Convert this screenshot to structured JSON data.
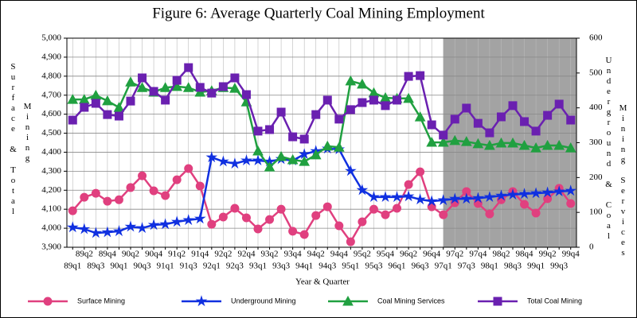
{
  "chart_data": {
    "type": "line",
    "title": "Figure 6:  Average Quarterly Coal Mining Employment",
    "xlabel": "Year & Quarter",
    "ylabel": [
      "Surface & Total",
      "Mining"
    ],
    "y2label": [
      "Underground & Coal",
      "Mining Services"
    ],
    "categories": [
      "89q1",
      "89q2",
      "89q3",
      "89q4",
      "90q1",
      "90q2",
      "90q3",
      "90q4",
      "91q1",
      "91q2",
      "91q3",
      "91q4",
      "92q1",
      "92q2",
      "92q3",
      "92q4",
      "93q1",
      "93q2",
      "93q3",
      "93q4",
      "94q1",
      "94q2",
      "94q3",
      "94q4",
      "95q1",
      "95q2",
      "95q3",
      "95q4",
      "96q1",
      "96q2",
      "96q3",
      "96q4",
      "97q1",
      "97q2",
      "97q3",
      "97q4",
      "98q1",
      "98q2",
      "98q3",
      "98q4",
      "99q1",
      "99q2",
      "99q3",
      "99q4"
    ],
    "shaded_from": "97q1",
    "shade_color": "#a3a3a3",
    "grid": true,
    "ylim": [
      3900,
      5000
    ],
    "yticks": [
      {
        "value": 3900,
        "label": "3,900"
      },
      {
        "value": 4000,
        "label": "4,000"
      },
      {
        "value": 4100,
        "label": "4,100"
      },
      {
        "value": 4200,
        "label": "4,200"
      },
      {
        "value": 4300,
        "label": "4,300"
      },
      {
        "value": 4400,
        "label": "4,400"
      },
      {
        "value": 4500,
        "label": "4,500"
      },
      {
        "value": 4600,
        "label": "4,600"
      },
      {
        "value": 4700,
        "label": "4,700"
      },
      {
        "value": 4800,
        "label": "4,800"
      },
      {
        "value": 4900,
        "label": "4,900"
      },
      {
        "value": 5000,
        "label": "5,000"
      }
    ],
    "y2lim": [
      0,
      600
    ],
    "y2ticks": [
      0,
      100,
      200,
      300,
      400,
      500,
      600
    ],
    "series": [
      {
        "name": "Surface Mining",
        "color": "#e0407f",
        "marker": "circle",
        "values": [
          4092,
          4163,
          4184,
          4142,
          4150,
          4214,
          4276,
          4197,
          4172,
          4255,
          4314,
          4222,
          4021,
          4059,
          4105,
          4055,
          3996,
          4046,
          4100,
          3984,
          3967,
          4067,
          4113,
          4013,
          3929,
          4034,
          4100,
          4071,
          4105,
          4230,
          4297,
          4113,
          4071,
          4134,
          4193,
          4130,
          4075,
          4150,
          4193,
          4126,
          4080,
          4155,
          4210,
          4130
        ]
      },
      {
        "name": "Underground Mining",
        "color": "#1030e0",
        "marker": "star",
        "axis": "y2",
        "values": [
          57,
          52,
          41,
          43,
          46,
          59,
          55,
          64,
          66,
          73,
          78,
          82,
          258,
          246,
          240,
          249,
          249,
          246,
          253,
          249,
          267,
          276,
          283,
          281,
          219,
          164,
          144,
          144,
          144,
          146,
          137,
          132,
          135,
          139,
          139,
          141,
          144,
          148,
          151,
          153,
          155,
          157,
          160,
          162
        ]
      },
      {
        "name": "Coal Mining Services",
        "color": "#20a040",
        "marker": "triangle",
        "axis": "y2",
        "values": [
          424,
          424,
          436,
          420,
          401,
          474,
          458,
          445,
          458,
          461,
          458,
          445,
          449,
          458,
          456,
          417,
          276,
          230,
          260,
          251,
          246,
          265,
          290,
          287,
          477,
          468,
          443,
          429,
          427,
          427,
          374,
          301,
          301,
          306,
          303,
          297,
          292,
          299,
          299,
          292,
          285,
          292,
          292,
          285
        ]
      },
      {
        "name": "Total Coal Mining",
        "color": "#6a20b0",
        "marker": "square",
        "values": [
          4569,
          4636,
          4657,
          4598,
          4590,
          4669,
          4791,
          4720,
          4674,
          4778,
          4845,
          4741,
          4711,
          4745,
          4791,
          4703,
          4511,
          4519,
          4611,
          4481,
          4469,
          4598,
          4674,
          4574,
          4624,
          4661,
          4674,
          4645,
          4674,
          4799,
          4803,
          4544,
          4490,
          4574,
          4632,
          4552,
          4502,
          4586,
          4645,
          4561,
          4511,
          4594,
          4653,
          4569
        ]
      }
    ]
  }
}
